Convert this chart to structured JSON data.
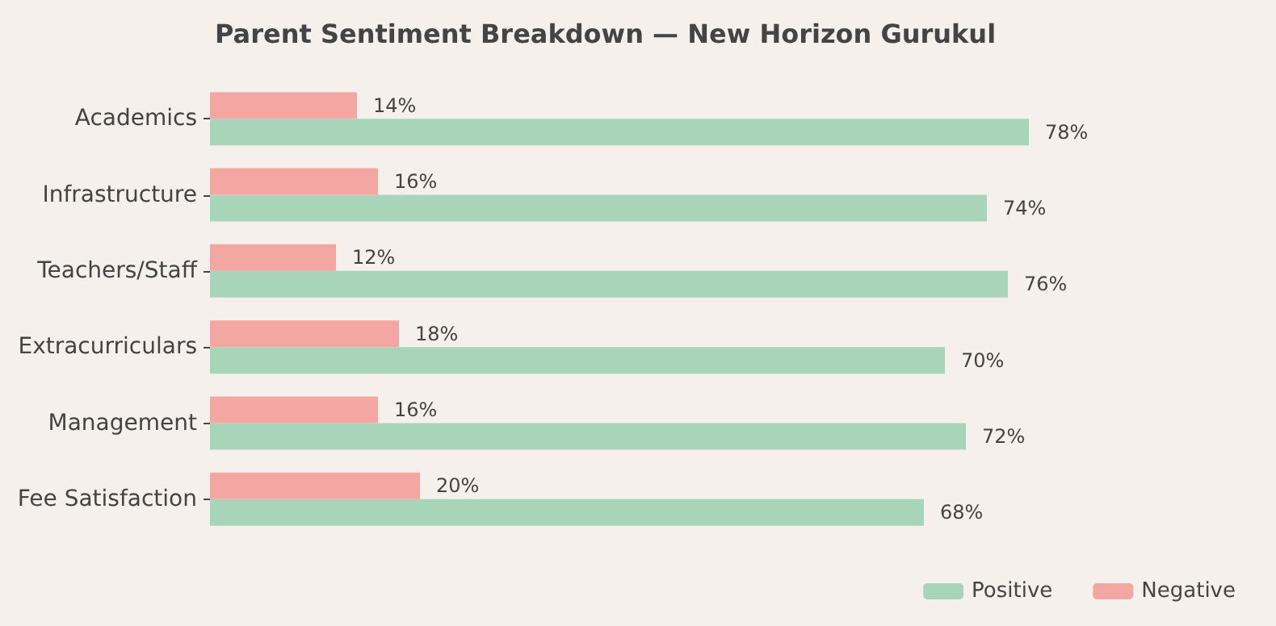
{
  "chart_data": {
    "type": "bar",
    "orientation": "horizontal",
    "title": "Parent Sentiment Breakdown — New Horizon Gurukul",
    "categories": [
      "Academics",
      "Infrastructure",
      "Teachers/Staff",
      "Extracurriculars",
      "Management",
      "Fee Satisfaction"
    ],
    "series": [
      {
        "name": "Positive",
        "color": "#a8d5ba",
        "values": [
          78,
          74,
          76,
          70,
          72,
          68
        ],
        "value_labels": [
          "78%",
          "74%",
          "76%",
          "70%",
          "72%",
          "68%"
        ]
      },
      {
        "name": "Negative",
        "color": "#f4a6a3",
        "values": [
          14,
          16,
          12,
          18,
          16,
          20
        ],
        "value_labels": [
          "14%",
          "16%",
          "12%",
          "18%",
          "16%",
          "20%"
        ]
      }
    ],
    "tick_labels": "y",
    "grid": false,
    "legend": "bottom right"
  }
}
